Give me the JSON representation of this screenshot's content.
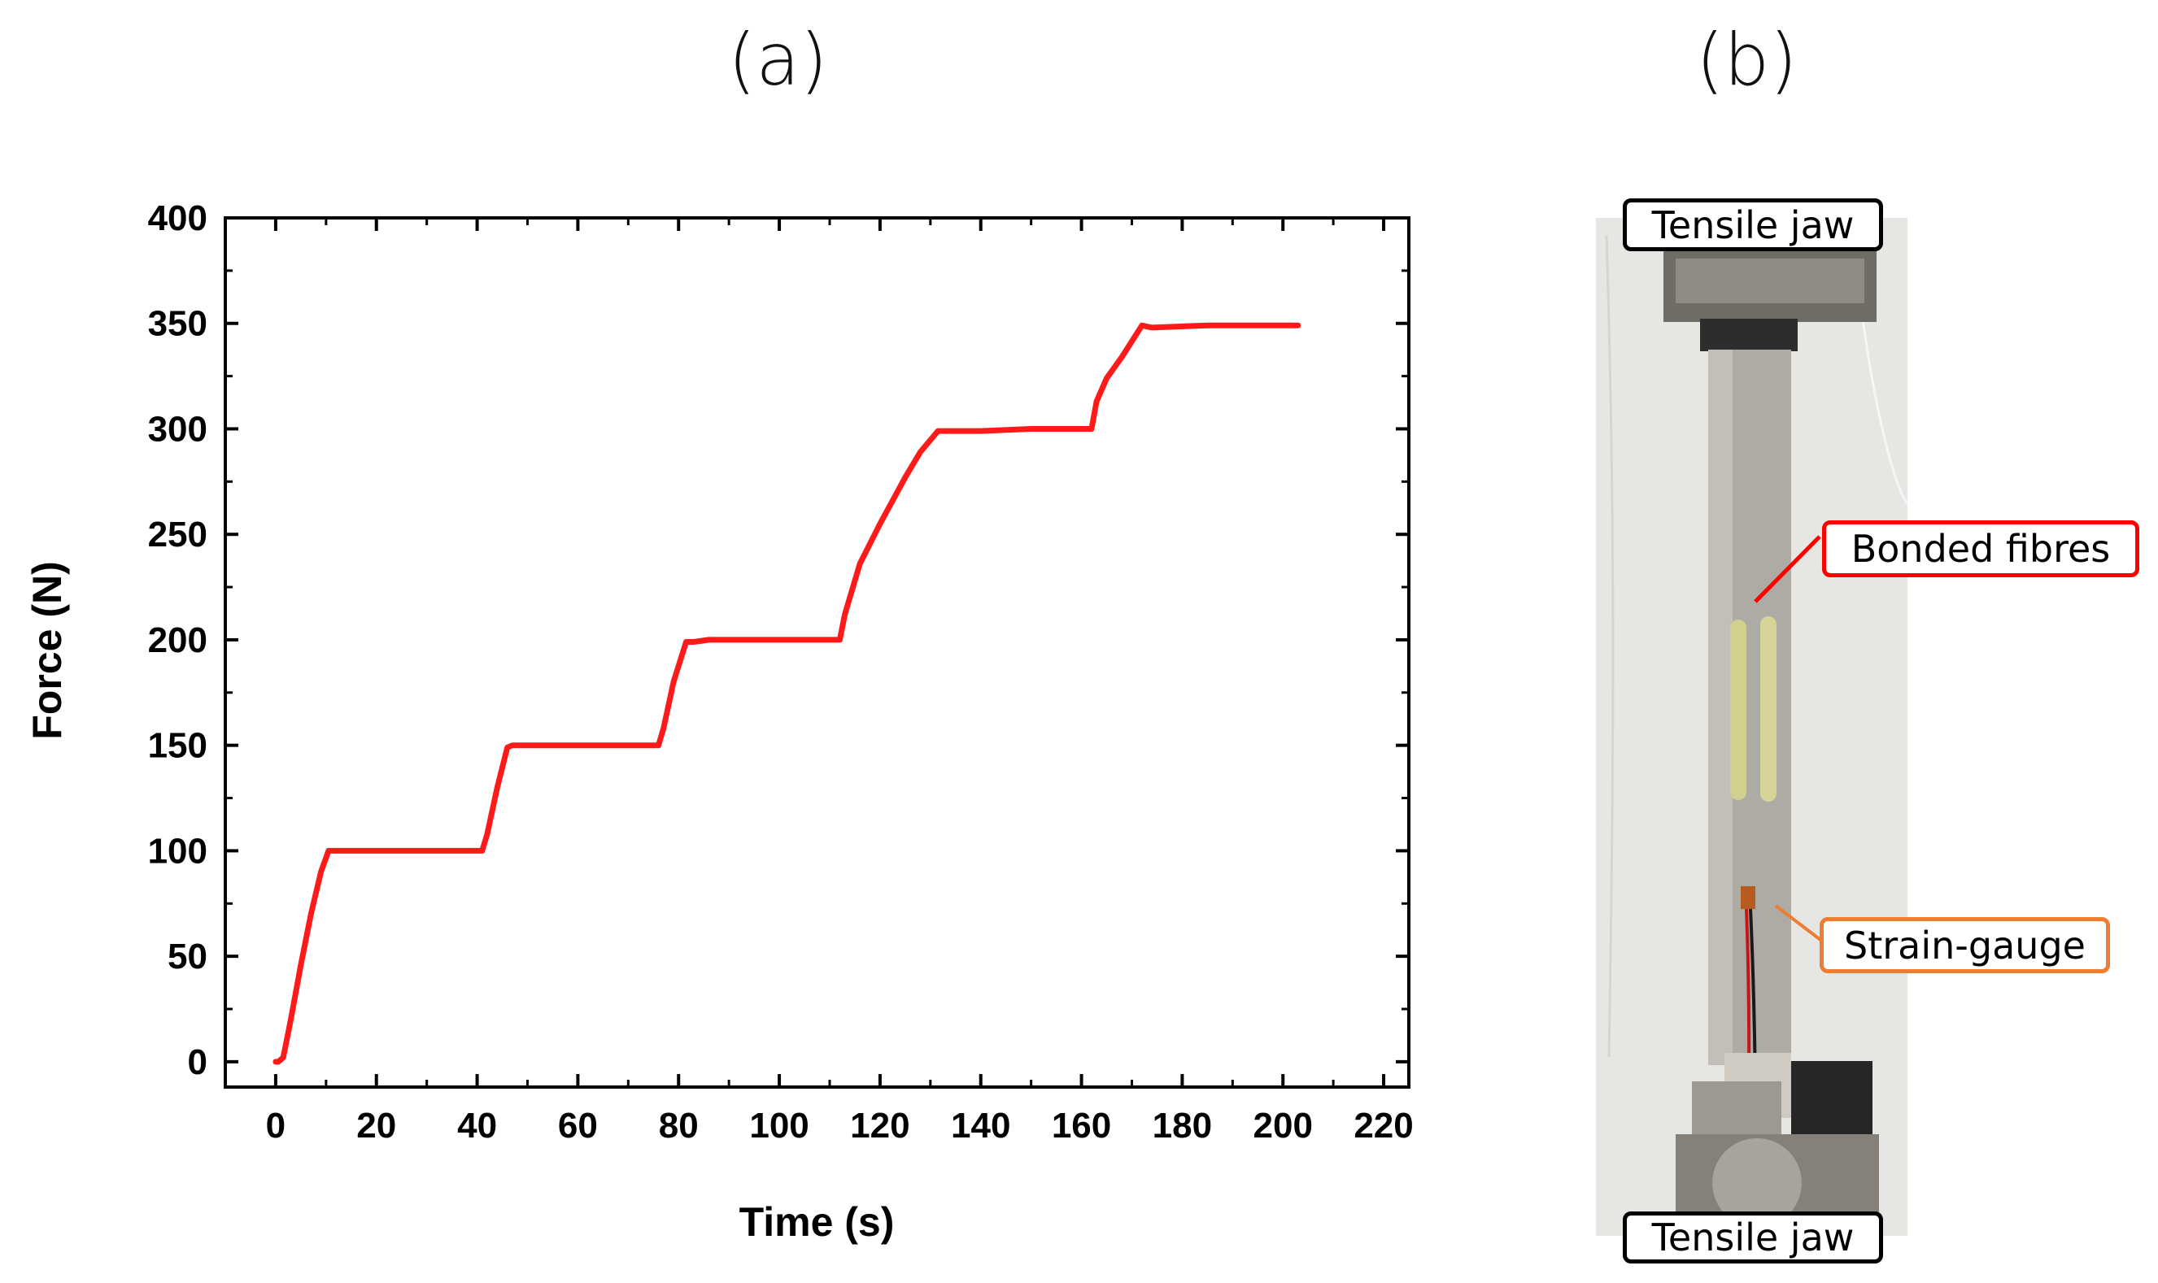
{
  "panels": {
    "a_label": "(a)",
    "b_label": "(b)"
  },
  "chart_data": {
    "type": "line",
    "xlabel": "Time (s)",
    "ylabel": "Force (N)",
    "xlim": [
      -10,
      225
    ],
    "ylim": [
      -12,
      400
    ],
    "xticks": [
      0,
      20,
      40,
      60,
      80,
      100,
      120,
      140,
      160,
      180,
      200,
      220
    ],
    "yticks": [
      0,
      50,
      100,
      150,
      200,
      250,
      300,
      350,
      400
    ],
    "grid": false,
    "line_color": "#ff1a1a",
    "series": [
      {
        "x": [
          0,
          0.5,
          1.5,
          3,
          5,
          7,
          9,
          10.5,
          12,
          20,
          30,
          41,
          42,
          44,
          46,
          47,
          49,
          55,
          65,
          76,
          77,
          79,
          81.5,
          83,
          86,
          95,
          105,
          112,
          113,
          116,
          120,
          125,
          128,
          131.5,
          133,
          140,
          150,
          162,
          163,
          165,
          168,
          172,
          174,
          185,
          195,
          203
        ],
        "y": [
          0,
          0,
          2,
          20,
          46,
          70,
          90,
          100,
          100,
          100,
          100,
          100,
          108,
          130,
          149,
          150,
          150,
          150,
          150,
          150,
          158,
          180,
          199,
          199,
          200,
          200,
          200,
          200,
          212,
          236,
          255,
          277,
          289,
          299,
          299,
          299,
          300,
          300,
          313,
          324,
          334,
          349,
          348,
          349,
          349,
          349
        ]
      }
    ]
  },
  "photo": {
    "callouts": {
      "top_jaw": "Tensile jaw",
      "bottom_jaw": "Tensile jaw",
      "bonded_fibres": "Bonded fibres",
      "strain_gauge": "Strain-gauge"
    },
    "colors": {
      "fibres": "#ff0000",
      "gauge": "#ed7d31"
    }
  }
}
